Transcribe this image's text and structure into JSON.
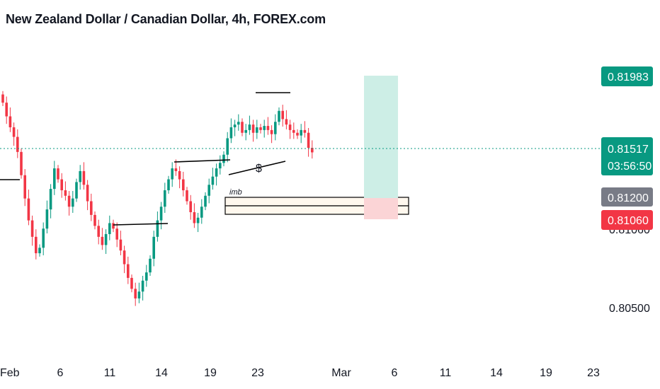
{
  "header": {
    "title": "New Zealand Dollar / Canadian Dollar, 4h, FOREX.com"
  },
  "price_tags": {
    "target": "0.81983",
    "current": "0.81517",
    "countdown": "03:56:50",
    "entry": "0.81200",
    "stop": "0.81060",
    "stop_hidden": "0.81060"
  },
  "annotations": {
    "dollar": "$",
    "imb": "imb"
  },
  "colors": {
    "up": "#089981",
    "down": "#f23645",
    "target_zone": "#cdeee6",
    "stop_zone": "#fbd4d6",
    "grey_tag": "#787b86"
  },
  "chart_data": {
    "type": "candlestick",
    "title": "New Zealand Dollar / Canadian Dollar, 4h, FOREX.com",
    "y_ticks": [
      "0.80500"
    ],
    "x_ticks": [
      "Feb",
      "6",
      "11",
      "14",
      "19",
      "23",
      "Mar",
      "6",
      "11",
      "14",
      "19",
      "23"
    ],
    "ylim": [
      0.8015,
      0.8232
    ],
    "current_price": 0.81517,
    "series": [
      {
        "name": "NZDCAD",
        "closes": [
          0.8188,
          0.8178,
          0.817,
          0.8163,
          0.8152,
          0.8135,
          0.8118,
          0.8102,
          0.809,
          0.8078,
          0.8082,
          0.8096,
          0.811,
          0.8125,
          0.814,
          0.8132,
          0.8124,
          0.812,
          0.8112,
          0.8118,
          0.813,
          0.8138,
          0.8128,
          0.8116,
          0.8106,
          0.8098,
          0.809,
          0.8084,
          0.8092,
          0.81,
          0.8096,
          0.8088,
          0.808,
          0.807,
          0.806,
          0.8052,
          0.8045,
          0.805,
          0.8058,
          0.8064,
          0.8074,
          0.809,
          0.8102,
          0.8112,
          0.8124,
          0.8132,
          0.814,
          0.8138,
          0.8132,
          0.8124,
          0.8116,
          0.8108,
          0.81,
          0.8104,
          0.8112,
          0.812,
          0.8128,
          0.8134,
          0.814,
          0.8144,
          0.815,
          0.8162,
          0.817,
          0.8172,
          0.8174,
          0.8166,
          0.8168,
          0.8172,
          0.8166,
          0.817,
          0.8168,
          0.8171,
          0.8168,
          0.8165,
          0.8174,
          0.8182,
          0.8176,
          0.8172,
          0.8168,
          0.8166,
          0.8164,
          0.8168,
          0.8166,
          0.8155,
          0.81517
        ]
      }
    ],
    "levels": {
      "target": 0.81983,
      "entry": 0.812,
      "stop": 0.8106
    }
  }
}
